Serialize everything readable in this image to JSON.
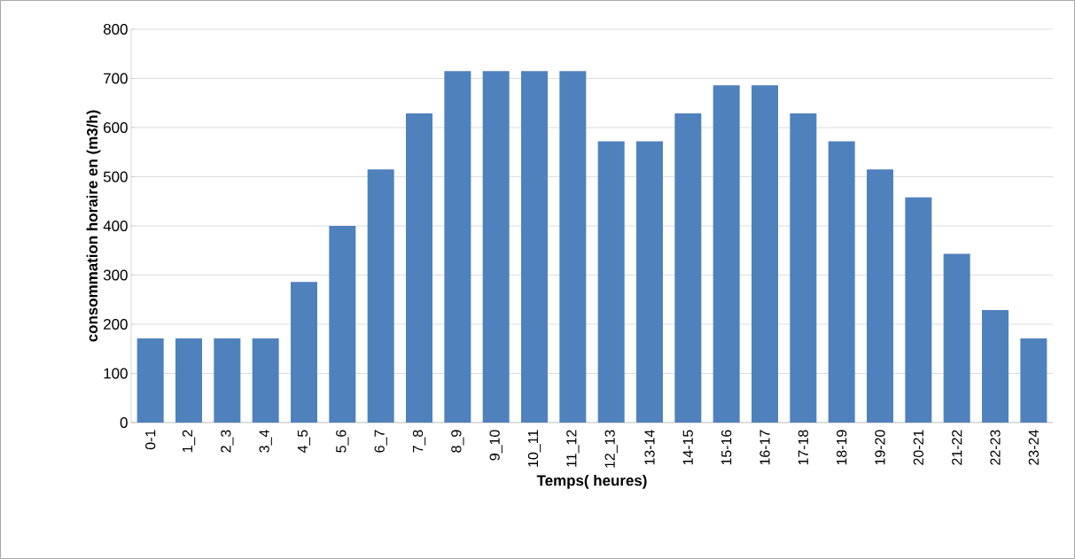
{
  "chart_data": {
    "type": "bar",
    "xlabel": "Temps( heures)",
    "ylabel": "consommation horaire en (m3/h)",
    "categories": [
      "0-1",
      "1_2",
      "2_3",
      "3_4",
      "4_5",
      "5_6",
      "6_7",
      "7_8",
      "8_9",
      "9_10",
      "10_11",
      "11_12",
      "12_13",
      "13-14",
      "14-15",
      "15-16",
      "16-17",
      "17-18",
      "18-19",
      "19-20",
      "20-21",
      "21-22",
      "22-23",
      "23-24"
    ],
    "values": [
      171,
      171,
      171,
      171,
      286,
      400,
      515,
      629,
      715,
      715,
      715,
      715,
      572,
      572,
      629,
      686,
      686,
      629,
      572,
      515,
      458,
      343,
      229,
      171
    ],
    "color": "#4f81bd",
    "ylim": [
      0,
      800
    ],
    "yticks": [
      0,
      100,
      200,
      300,
      400,
      500,
      600,
      700,
      800
    ],
    "grid": "y"
  }
}
